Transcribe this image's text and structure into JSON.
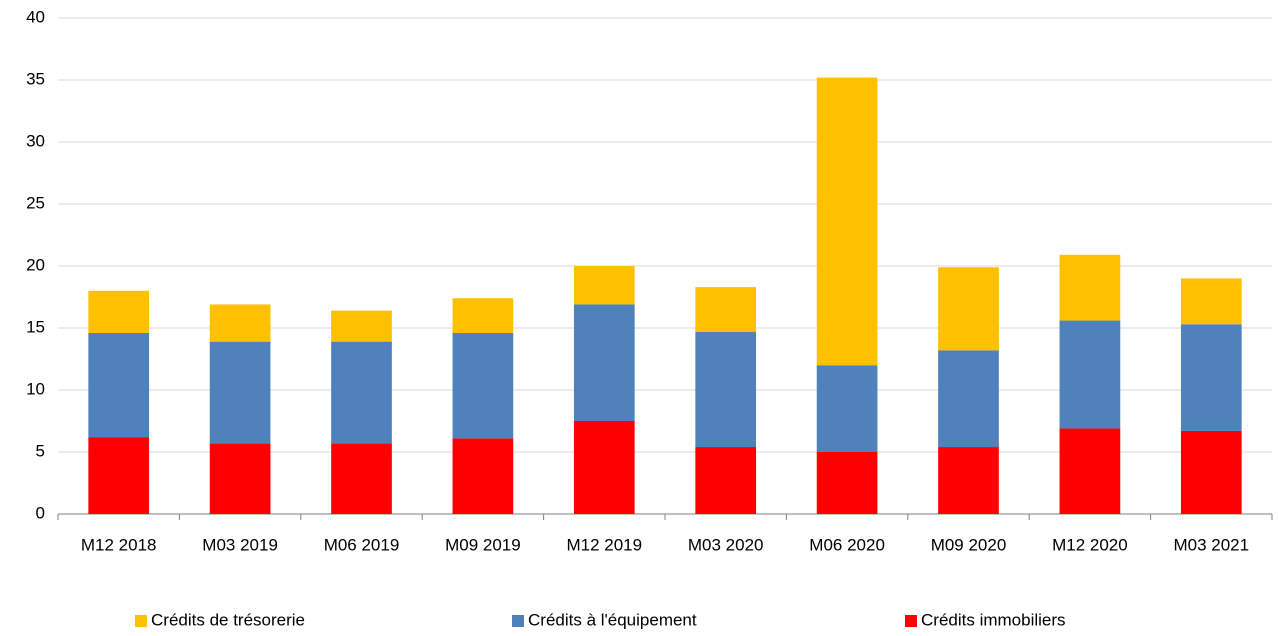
{
  "chart_data": {
    "type": "stacked_bar",
    "categories": [
      "M12 2018",
      "M03 2019",
      "M06 2019",
      "M09 2019",
      "M12 2019",
      "M03 2020",
      "M06 2020",
      "M09 2020",
      "M12 2020",
      "M03 2021"
    ],
    "series": [
      {
        "name": "Crédits immobiliers",
        "color": "#ff0000",
        "values": [
          6.2,
          5.7,
          5.7,
          6.1,
          7.5,
          5.4,
          5.0,
          5.4,
          6.9,
          6.7
        ]
      },
      {
        "name": "Crédits à l'équipement",
        "color": "#4f81bd",
        "values": [
          8.4,
          8.2,
          8.2,
          8.5,
          9.4,
          9.3,
          7.0,
          7.8,
          8.7,
          8.6
        ]
      },
      {
        "name": "Crédits de trésorerie",
        "color": "#ffc000",
        "values": [
          3.4,
          3.0,
          2.5,
          2.8,
          3.1,
          3.6,
          23.2,
          6.7,
          5.3,
          3.7
        ]
      }
    ],
    "ylim": [
      0,
      40
    ],
    "yticks": [
      0,
      5,
      10,
      15,
      20,
      25,
      30,
      35,
      40
    ],
    "grid": true,
    "legend": "bottom"
  }
}
